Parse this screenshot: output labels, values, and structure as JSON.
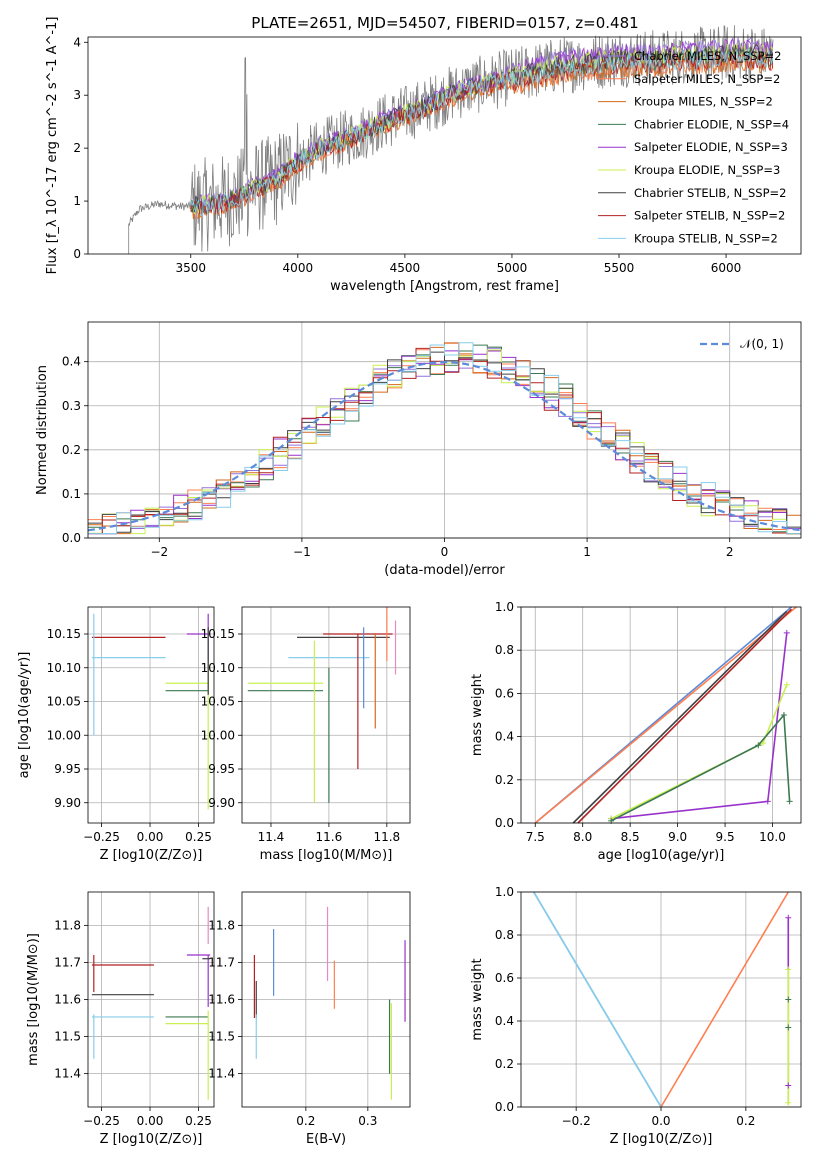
{
  "title": "PLATE=2651, MJD=54507, FIBERID=0157, z=0.481",
  "colors": {
    "chabrier_miles": "#9370db",
    "salpeter_miles": "#ff7f50",
    "kroupa_miles": "#d2691e",
    "chabrier_elodie": "#3c7850",
    "salpeter_elodie": "#9932cc",
    "kroupa_elodie": "#c8f050",
    "chabrier_stelib": "#404040",
    "salpeter_stelib": "#b22222",
    "kroupa_stelib": "#87ceeb",
    "data": "#808080",
    "normal_curve": "#5b8bd9"
  },
  "chart_data": [
    {
      "type": "line",
      "id": "spectrum",
      "xlabel": "wavelength [Angstrom, rest frame]",
      "ylabel": "Flux [f_λ 10^-17 erg cm^-2 s^-1 A^-1]",
      "xlim": [
        3020,
        6350
      ],
      "ylim": [
        0,
        4.1
      ],
      "xticks": [
        "3500",
        "4000",
        "4500",
        "5000",
        "5500",
        "6000"
      ],
      "yticks": [
        "0",
        "1",
        "2",
        "3",
        "4"
      ],
      "legend_position": "top-right",
      "legend": [
        "Chabrier MILES, N_SSP=2",
        "Salpeter MILES, N_SSP=2",
        "Kroupa MILES, N_SSP=2",
        "Chabrier ELODIE, N_SSP=4",
        "Salpeter ELODIE, N_SSP=3",
        "Kroupa ELODIE, N_SSP=3",
        "Chabrier STELIB, N_SSP=2",
        "Salpeter STELIB, N_SSP=2",
        "Kroupa STELIB, N_SSP=2"
      ],
      "data_x_range": [
        3210,
        6220
      ],
      "trend": {
        "x": [
          3210,
          3260,
          3350,
          3450,
          3500,
          3600,
          3700,
          3800,
          3900,
          3950,
          4000,
          4100,
          4200,
          4300,
          4400,
          4500,
          4600,
          4700,
          4800,
          4900,
          5000,
          5100,
          5200,
          5300,
          5400,
          5500,
          5600,
          5700,
          5800,
          5900,
          6000,
          6100,
          6220
        ],
        "y": [
          0.55,
          0.85,
          0.95,
          0.9,
          0.9,
          0.95,
          1.05,
          1.25,
          1.4,
          1.6,
          1.75,
          2.0,
          2.15,
          2.3,
          2.5,
          2.65,
          2.8,
          3.0,
          3.15,
          3.25,
          3.35,
          3.45,
          3.55,
          3.6,
          3.65,
          3.7,
          3.7,
          3.7,
          3.75,
          3.75,
          3.8,
          3.8,
          3.75
        ]
      }
    },
    {
      "type": "step",
      "id": "residuals",
      "xlabel": "(data-model)/error",
      "ylabel": "Normed distribution",
      "xlim": [
        -2.5,
        2.5
      ],
      "ylim": [
        0,
        0.49
      ],
      "xticks": [
        "−2",
        "−1",
        "0",
        "1",
        "2"
      ],
      "yticks": [
        "0.0",
        "0.1",
        "0.2",
        "0.3",
        "0.4"
      ],
      "legend": [
        "𝒩(0, 1)"
      ],
      "bin_width": 0.1
    },
    {
      "type": "errorbar",
      "id": "age_vs_Z",
      "xlabel": "Z [log10(Z/Z⊙)]",
      "ylabel": "age [log10(age/yr)]",
      "xlim": [
        -0.32,
        0.33
      ],
      "ylim": [
        9.87,
        10.19
      ],
      "xticks": [
        "−0.25",
        "0.00",
        "0.25"
      ],
      "yticks": [
        "9.90",
        "9.95",
        "10.00",
        "10.05",
        "10.10",
        "10.15"
      ]
    },
    {
      "type": "errorbar",
      "id": "age_vs_mass",
      "xlabel": "mass [log10(M/M⊙)]",
      "ylabel": "",
      "xlim": [
        11.3,
        11.88
      ],
      "ylim": [
        9.87,
        10.19
      ],
      "xticks": [
        "11.4",
        "11.6",
        "11.8"
      ],
      "yticks": [
        "9.90",
        "9.95",
        "10.00",
        "10.05",
        "10.10",
        "10.15"
      ]
    },
    {
      "type": "line",
      "id": "weight_vs_age",
      "xlabel": "age [log10(age/yr)]",
      "ylabel": "mass weight",
      "xlim": [
        7.35,
        10.3
      ],
      "ylim": [
        0,
        1
      ],
      "xticks": [
        "7.5",
        "8.0",
        "8.5",
        "9.0",
        "9.5",
        "10.0"
      ],
      "yticks": [
        "0.0",
        "0.2",
        "0.4",
        "0.6",
        "0.8",
        "1.0"
      ]
    },
    {
      "type": "errorbar",
      "id": "mass_vs_Z",
      "xlabel": "Z [log10(Z/Z⊙)]",
      "ylabel": "mass [log10(M/M⊙)]",
      "xlim": [
        -0.32,
        0.33
      ],
      "ylim": [
        11.31,
        11.89
      ],
      "xticks": [
        "−0.25",
        "0.00",
        "0.25"
      ],
      "yticks": [
        "11.4",
        "11.5",
        "11.6",
        "11.7",
        "11.8"
      ]
    },
    {
      "type": "errorbar",
      "id": "mass_vs_ebv",
      "xlabel": "E(B-V)",
      "ylabel": "",
      "xlim": [
        0.097,
        0.368
      ],
      "ylim": [
        11.31,
        11.89
      ],
      "xticks": [
        "0.2",
        "0.3"
      ],
      "yticks": [
        "11.4",
        "11.5",
        "11.6",
        "11.7",
        "11.8"
      ]
    },
    {
      "type": "line",
      "id": "weight_vs_Z",
      "xlabel": "Z [log10(Z/Z⊙)]",
      "ylabel": "mass weight",
      "xlim": [
        -0.33,
        0.33
      ],
      "ylim": [
        0,
        1
      ],
      "xticks": [
        "−0.2",
        "0.0",
        "0.2"
      ],
      "yticks": [
        "0.0",
        "0.2",
        "0.4",
        "0.6",
        "0.8",
        "1.0"
      ]
    }
  ]
}
